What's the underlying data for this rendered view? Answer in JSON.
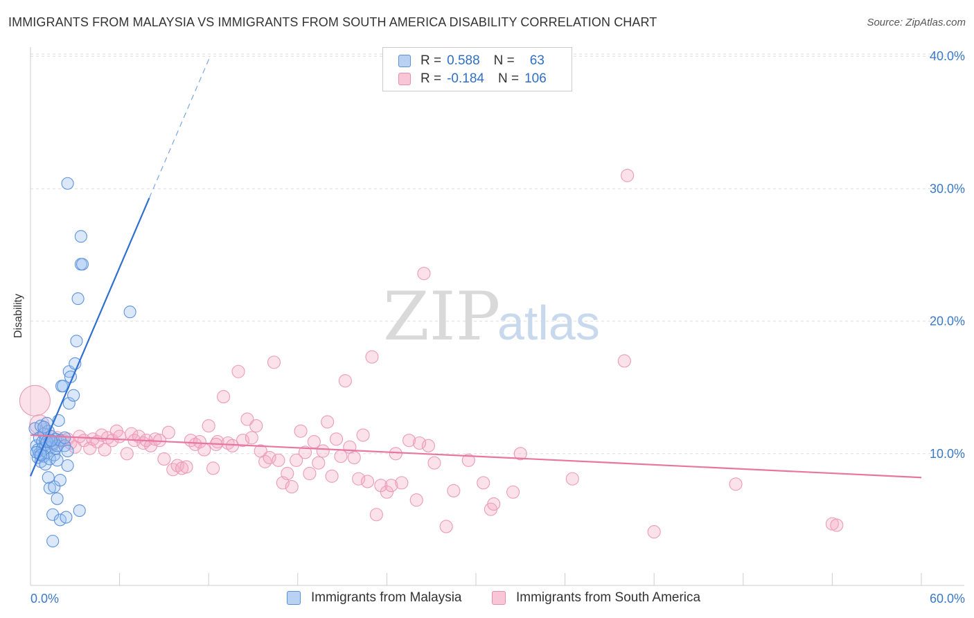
{
  "title": "IMMIGRANTS FROM MALAYSIA VS IMMIGRANTS FROM SOUTH AMERICA DISABILITY CORRELATION CHART",
  "source": "Source: ZipAtlas.com",
  "watermark": {
    "zip": "ZIP",
    "atlas": "atlas"
  },
  "legend": {
    "rows": [
      {
        "r_label": "R =",
        "r_value": "0.588",
        "n_label": "N =",
        "n_value": "63"
      },
      {
        "r_label": "R =",
        "r_value": "-0.184",
        "n_label": "N =",
        "n_value": "106"
      }
    ]
  },
  "chart_data": {
    "type": "scatter",
    "xlabel": "",
    "ylabel": "Disability",
    "xlim": [
      0,
      60
    ],
    "ylim": [
      0,
      42
    ],
    "x_tick_labels": [
      "0.0%",
      "60.0%"
    ],
    "y_ticks": [
      10,
      20,
      30,
      40
    ],
    "y_tick_labels": [
      "10.0%",
      "20.0%",
      "30.0%",
      "40.0%"
    ],
    "grid": "horizontal dashed",
    "legend_position": "top-center",
    "colors": {
      "malaysia": "#2f6fd0",
      "south_america": "#e8779f"
    },
    "series": [
      {
        "name": "Immigrants from Malaysia",
        "color": "#2f6fd0",
        "r": 0.588,
        "n": 63,
        "trend": {
          "x": [
            0,
            8.0
          ],
          "y": [
            8.3,
            29.3
          ],
          "dashed_to": [
            12.1,
            40.0
          ]
        },
        "points": [
          [
            0.3,
            11.9
          ],
          [
            0.4,
            10.6
          ],
          [
            0.5,
            10.3
          ],
          [
            0.5,
            9.7
          ],
          [
            0.6,
            11.2
          ],
          [
            0.6,
            10.0
          ],
          [
            0.7,
            12.1
          ],
          [
            0.7,
            9.4
          ],
          [
            0.8,
            10.9
          ],
          [
            0.8,
            10.4
          ],
          [
            0.9,
            11.5
          ],
          [
            0.9,
            9.8
          ],
          [
            1.0,
            10.7
          ],
          [
            1.0,
            11.0
          ],
          [
            1.0,
            9.2
          ],
          [
            1.1,
            12.3
          ],
          [
            1.1,
            10.1
          ],
          [
            1.2,
            8.2
          ],
          [
            1.2,
            11.7
          ],
          [
            1.3,
            10.9
          ],
          [
            1.3,
            9.6
          ],
          [
            1.3,
            7.4
          ],
          [
            1.4,
            10.5
          ],
          [
            1.4,
            11.3
          ],
          [
            1.5,
            5.4
          ],
          [
            1.5,
            3.4
          ],
          [
            1.5,
            10.8
          ],
          [
            1.6,
            9.9
          ],
          [
            1.6,
            7.5
          ],
          [
            1.7,
            10.4
          ],
          [
            1.7,
            11.1
          ],
          [
            1.8,
            6.6
          ],
          [
            1.8,
            10.6
          ],
          [
            1.9,
            12.5
          ],
          [
            2.0,
            11.0
          ],
          [
            2.0,
            5.0
          ],
          [
            2.0,
            8.0
          ],
          [
            2.1,
            15.1
          ],
          [
            2.2,
            15.1
          ],
          [
            2.3,
            10.6
          ],
          [
            2.3,
            11.2
          ],
          [
            2.4,
            5.2
          ],
          [
            2.5,
            9.1
          ],
          [
            2.5,
            10.2
          ],
          [
            2.6,
            13.8
          ],
          [
            2.6,
            16.2
          ],
          [
            2.7,
            15.8
          ],
          [
            2.9,
            14.4
          ],
          [
            2.5,
            30.4
          ],
          [
            3.0,
            16.8
          ],
          [
            3.1,
            18.5
          ],
          [
            3.2,
            21.7
          ],
          [
            3.3,
            5.7
          ],
          [
            3.4,
            24.3
          ],
          [
            3.4,
            26.4
          ],
          [
            3.5,
            24.3
          ],
          [
            6.7,
            20.7
          ],
          [
            0.4,
            10.1
          ],
          [
            0.9,
            12.0
          ],
          [
            1.1,
            10.9
          ],
          [
            1.4,
            11.0
          ],
          [
            0.7,
            9.9
          ],
          [
            1.8,
            9.5
          ]
        ]
      },
      {
        "name": "Immigrants from South America",
        "color": "#e8779f",
        "r": -0.184,
        "n": 106,
        "trend": {
          "x": [
            0,
            60
          ],
          "y": [
            11.4,
            8.2
          ]
        },
        "points": [
          [
            0.3,
            14.0
          ],
          [
            0.6,
            12.2
          ],
          [
            1.0,
            11.8
          ],
          [
            1.2,
            11.0
          ],
          [
            1.5,
            10.7
          ],
          [
            1.8,
            11.2
          ],
          [
            2.0,
            10.9
          ],
          [
            2.2,
            11.0
          ],
          [
            2.5,
            11.1
          ],
          [
            2.7,
            10.8
          ],
          [
            3.0,
            10.5
          ],
          [
            3.3,
            11.3
          ],
          [
            3.6,
            11.0
          ],
          [
            4.0,
            10.4
          ],
          [
            4.2,
            11.1
          ],
          [
            4.5,
            10.9
          ],
          [
            4.8,
            11.4
          ],
          [
            5.0,
            10.3
          ],
          [
            5.2,
            11.2
          ],
          [
            5.5,
            11.0
          ],
          [
            5.8,
            11.7
          ],
          [
            6.0,
            11.3
          ],
          [
            6.5,
            10.0
          ],
          [
            6.8,
            11.5
          ],
          [
            7.0,
            11.0
          ],
          [
            7.3,
            11.3
          ],
          [
            7.6,
            10.8
          ],
          [
            7.8,
            11.0
          ],
          [
            8.1,
            10.6
          ],
          [
            8.4,
            11.1
          ],
          [
            8.7,
            11.0
          ],
          [
            9.0,
            9.6
          ],
          [
            9.3,
            11.6
          ],
          [
            9.6,
            8.8
          ],
          [
            9.9,
            9.1
          ],
          [
            10.2,
            8.9
          ],
          [
            10.5,
            9.0
          ],
          [
            10.8,
            11.0
          ],
          [
            11.1,
            10.7
          ],
          [
            11.4,
            10.9
          ],
          [
            11.7,
            10.3
          ],
          [
            12.0,
            12.1
          ],
          [
            12.3,
            8.9
          ],
          [
            12.6,
            10.9
          ],
          [
            13.0,
            14.3
          ],
          [
            13.3,
            10.8
          ],
          [
            13.6,
            10.6
          ],
          [
            14.0,
            16.2
          ],
          [
            14.3,
            11.0
          ],
          [
            14.6,
            12.6
          ],
          [
            14.9,
            11.2
          ],
          [
            15.2,
            12.1
          ],
          [
            15.5,
            10.2
          ],
          [
            15.8,
            9.4
          ],
          [
            16.1,
            9.7
          ],
          [
            16.4,
            16.9
          ],
          [
            16.7,
            9.5
          ],
          [
            17.0,
            7.8
          ],
          [
            17.3,
            8.5
          ],
          [
            17.6,
            7.5
          ],
          [
            17.9,
            9.5
          ],
          [
            18.2,
            11.7
          ],
          [
            18.5,
            10.1
          ],
          [
            18.8,
            8.5
          ],
          [
            19.1,
            10.9
          ],
          [
            19.4,
            9.3
          ],
          [
            19.7,
            10.2
          ],
          [
            20.0,
            12.4
          ],
          [
            20.3,
            8.3
          ],
          [
            20.6,
            11.1
          ],
          [
            20.9,
            9.8
          ],
          [
            21.2,
            15.5
          ],
          [
            21.5,
            10.5
          ],
          [
            21.8,
            9.7
          ],
          [
            22.1,
            8.1
          ],
          [
            22.4,
            11.4
          ],
          [
            22.7,
            7.9
          ],
          [
            23.0,
            17.3
          ],
          [
            23.3,
            5.4
          ],
          [
            23.6,
            7.6
          ],
          [
            24.0,
            7.1
          ],
          [
            24.3,
            7.6
          ],
          [
            24.6,
            10.0
          ],
          [
            25.0,
            7.8
          ],
          [
            25.5,
            11.0
          ],
          [
            26.0,
            6.5
          ],
          [
            26.2,
            10.8
          ],
          [
            26.5,
            23.6
          ],
          [
            26.8,
            10.6
          ],
          [
            27.2,
            9.3
          ],
          [
            28.0,
            4.5
          ],
          [
            28.5,
            7.2
          ],
          [
            29.5,
            9.5
          ],
          [
            30.5,
            7.8
          ],
          [
            31.0,
            5.8
          ],
          [
            31.2,
            6.2
          ],
          [
            32.5,
            7.1
          ],
          [
            33.0,
            10.0
          ],
          [
            36.5,
            8.1
          ],
          [
            40.0,
            17.0
          ],
          [
            40.2,
            31.0
          ],
          [
            42.0,
            4.1
          ],
          [
            47.5,
            7.7
          ],
          [
            54.0,
            4.7
          ],
          [
            54.3,
            4.6
          ],
          [
            12.5,
            10.7
          ]
        ]
      }
    ]
  },
  "axes": {
    "y_ticks_right": [
      "10.0%",
      "20.0%",
      "30.0%",
      "40.0%"
    ],
    "x_left": "0.0%",
    "x_right": "60.0%"
  },
  "bottom_legend": [
    "Immigrants from Malaysia",
    "Immigrants from South America"
  ]
}
